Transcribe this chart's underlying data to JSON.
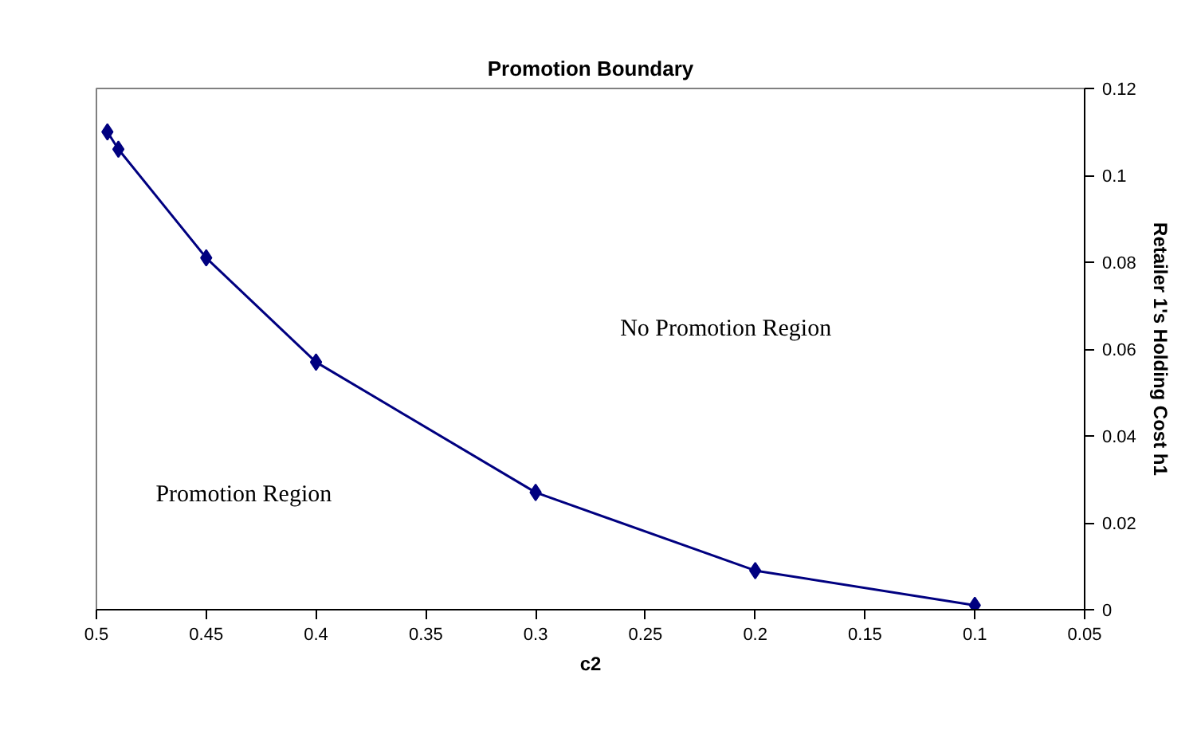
{
  "chart_data": {
    "type": "line",
    "title": "Promotion Boundary",
    "xlabel": "c2",
    "y2label": "Retailer 1's Holding Cost h1",
    "x": [
      0.495,
      0.49,
      0.45,
      0.4,
      0.3,
      0.2,
      0.1
    ],
    "series": [
      {
        "color": "#000080",
        "values": [
          0.11,
          0.106,
          0.081,
          0.057,
          0.027,
          0.009,
          0.001
        ],
        "axis": "y2"
      }
    ],
    "xlim": [
      0.5,
      0.05
    ],
    "xticks": [
      0.5,
      0.45,
      0.4,
      0.35,
      0.3,
      0.25,
      0.2,
      0.15,
      0.1,
      0.05
    ],
    "y2lim": [
      0,
      0.12
    ],
    "y2ticks": [
      0,
      0.02,
      0.04,
      0.06,
      0.08,
      0.1,
      0.12
    ],
    "marker": "diamond",
    "line_style": "solid",
    "grid": false,
    "annotations": [
      "No Promotion Region",
      "Promotion Region"
    ]
  }
}
